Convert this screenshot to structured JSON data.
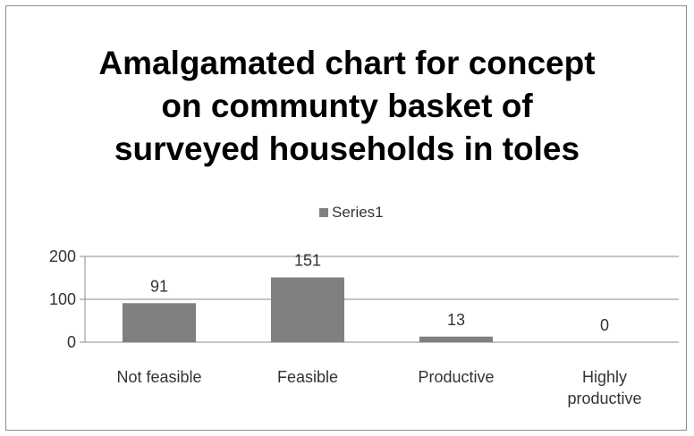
{
  "chart_data": {
    "type": "bar",
    "title_lines": [
      "Amalgamated chart for concept",
      "on communty basket of",
      "surveyed households in toles"
    ],
    "categories": [
      [
        "Not feasible"
      ],
      [
        "Feasible"
      ],
      [
        "Productive"
      ],
      [
        "Highly",
        "productive"
      ]
    ],
    "series": [
      {
        "name": "Series1",
        "values": [
          91,
          151,
          13,
          0
        ],
        "color": "#808080"
      }
    ],
    "data_labels": [
      "91",
      "151",
      "13",
      "0"
    ],
    "y_ticks": [
      {
        "value": 0,
        "label": "0"
      },
      {
        "value": 100,
        "label": "100"
      },
      {
        "value": 200,
        "label": "200"
      }
    ],
    "ylim": [
      0,
      200
    ],
    "grid": true,
    "legend_position": "top",
    "colors": {
      "bar": "#808080",
      "grid": "#8c8c8c",
      "frame": "#8c8c8c"
    }
  }
}
